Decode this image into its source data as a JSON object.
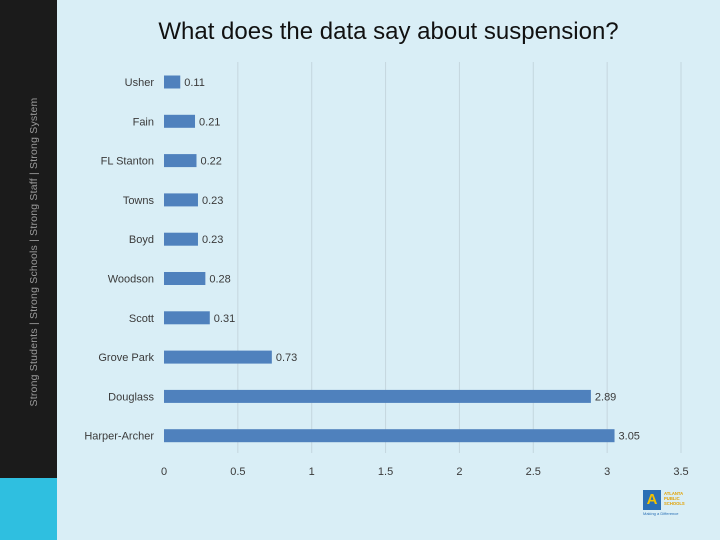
{
  "slide": {
    "title": "What does the data say about suspension?",
    "sidebar_tagline": "Strong Students  |  Strong Schools  |  Strong Staff  |  Strong System"
  },
  "logo": {
    "icon_letter": "A",
    "text": "ATLANTA PUBLIC SCHOOLS",
    "motto": "Making a Difference"
  },
  "chart_data": {
    "type": "bar",
    "orientation": "horizontal",
    "categories": [
      "Usher",
      "Fain",
      "FL Stanton",
      "Towns",
      "Boyd",
      "Woodson",
      "Scott",
      "Grove Park",
      "Douglass",
      "Harper-Archer"
    ],
    "values": [
      0.11,
      0.21,
      0.22,
      0.23,
      0.23,
      0.28,
      0.31,
      0.73,
      2.89,
      3.05
    ],
    "xlim": [
      0,
      3.5
    ],
    "xticks": [
      "0",
      "0.5",
      "1",
      "1.5",
      "2",
      "2.5",
      "3",
      "3.5"
    ],
    "grid": true,
    "data_labels": true,
    "colors": {
      "bar": "#4f81bd",
      "grid": "#c4d6de",
      "text": "#3a3a3a"
    }
  }
}
